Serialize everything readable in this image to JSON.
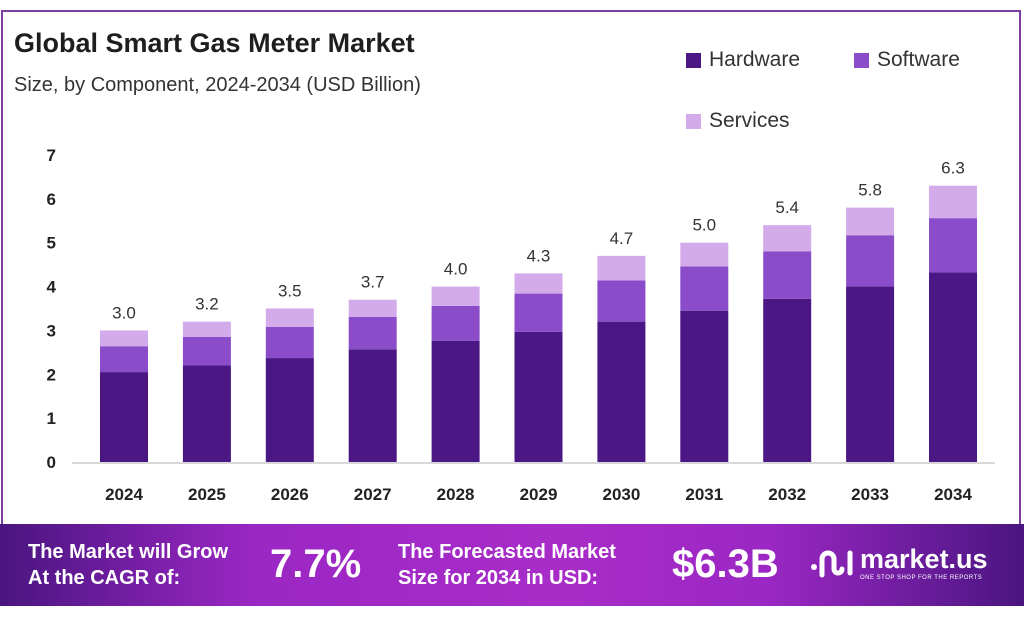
{
  "chart_data": {
    "type": "bar",
    "stacked": true,
    "title": "Global Smart Gas Meter Market",
    "subtitle": "Size, by Component, 2024-2034 (USD Billion)",
    "categories": [
      "2024",
      "2025",
      "2026",
      "2027",
      "2028",
      "2029",
      "2030",
      "2031",
      "2032",
      "2033",
      "2034"
    ],
    "series": [
      {
        "name": "Hardware",
        "color": "#4b1785",
        "values": [
          2.05,
          2.2,
          2.37,
          2.57,
          2.76,
          2.97,
          3.2,
          3.45,
          3.72,
          4.0,
          4.32
        ]
      },
      {
        "name": "Software",
        "color": "#8a4cc9",
        "values": [
          0.59,
          0.65,
          0.71,
          0.74,
          0.8,
          0.87,
          0.94,
          1.01,
          1.08,
          1.17,
          1.24
        ]
      },
      {
        "name": "Services",
        "color": "#d3aaea",
        "values": [
          0.36,
          0.35,
          0.42,
          0.39,
          0.44,
          0.46,
          0.56,
          0.54,
          0.6,
          0.63,
          0.74
        ]
      }
    ],
    "totals": [
      "3.0",
      "3.2",
      "3.5",
      "3.7",
      "4.0",
      "4.3",
      "4.7",
      "5.0",
      "5.4",
      "5.8",
      "6.3"
    ],
    "yticks": [
      "0",
      "1",
      "2",
      "3",
      "4",
      "5",
      "6",
      "7"
    ],
    "ylim": [
      0,
      7
    ],
    "grid": false,
    "legend_position": "top-right"
  },
  "footer": {
    "cagr_label_1": "The Market will Grow",
    "cagr_label_2": "At the CAGR of:",
    "cagr_value": "7.7%",
    "forecast_label_1": "The Forecasted Market",
    "forecast_label_2": "Size for 2034 in USD:",
    "forecast_value": "$6.3B",
    "logo_name": "market.us",
    "logo_tagline": "ONE STOP SHOP FOR THE REPORTS"
  }
}
